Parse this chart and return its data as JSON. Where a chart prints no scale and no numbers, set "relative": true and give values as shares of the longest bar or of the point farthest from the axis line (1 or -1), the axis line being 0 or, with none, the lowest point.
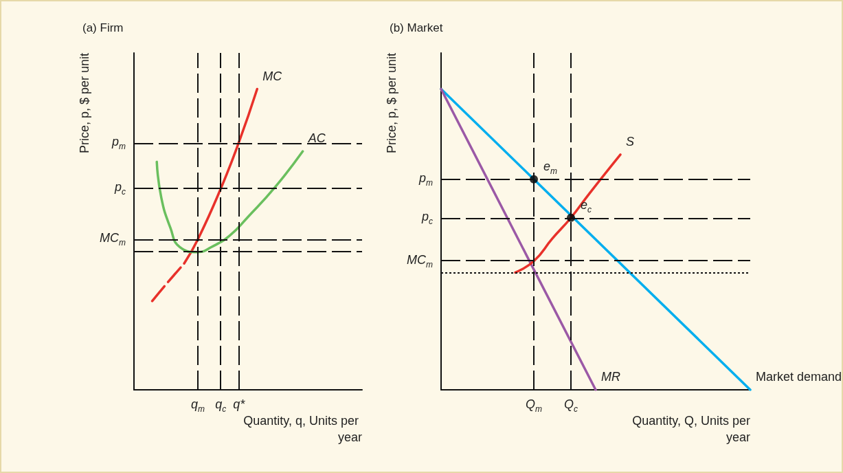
{
  "chart_data": [
    {
      "type": "line",
      "title": "(a) Firm",
      "xlabel": "Quantity, q, Units per year",
      "ylabel": "Price, p, $ per unit",
      "relative": true,
      "marker": "none",
      "categories": [
        null,
        null,
        null,
        null,
        null,
        null,
        null,
        null,
        null,
        null,
        null,
        null,
        null,
        null,
        "q$_{m}$",
        null,
        null,
        null,
        null,
        "q$_{c}$",
        null,
        null,
        null,
        "q*",
        null,
        null,
        null,
        null,
        null,
        null,
        null,
        null,
        null,
        null,
        null,
        null,
        null,
        null,
        null,
        null,
        null,
        null,
        null,
        null,
        null,
        null,
        null,
        null,
        null,
        null,
        null
      ],
      "series": [
        {
          "name": "MC",
          "color": "#e8312a",
          "values": [
            null,
            null,
            null,
            null,
            null,
            null,
            null,
            null,
            null,
            null,
            null,
            0.42,
            null,
            null,
            0.5,
            null,
            null,
            null,
            null,
            0.668,
            null,
            null,
            null,
            0.823,
            null,
            null,
            null,
            1.0,
            null,
            null,
            null,
            null,
            null,
            null,
            null,
            null,
            null,
            null,
            null,
            null,
            null,
            null,
            null,
            null,
            null,
            null,
            null,
            null,
            null,
            null,
            null
          ]
        },
        {
          "color": "#e8312a",
          "line_style": "dashed",
          "values": [
            null,
            null,
            null,
            null,
            0.295,
            null,
            null,
            0.35,
            null,
            null,
            null,
            0.42,
            null,
            null,
            null,
            null,
            null,
            null,
            null,
            null,
            null,
            null,
            null,
            null,
            null,
            null,
            null,
            null,
            null,
            null,
            null,
            null,
            null,
            null,
            null,
            null,
            null,
            null,
            null,
            null,
            null,
            null,
            null,
            null,
            null,
            null,
            null,
            null,
            null,
            null,
            null
          ]
        },
        {
          "name": "AC",
          "color": "#6abf5e",
          "values": [
            null,
            null,
            null,
            null,
            null,
            0.758,
            0.638,
            null,
            0.538,
            null,
            0.475,
            null,
            null,
            null,
            0.458,
            null,
            null,
            0.475,
            null,
            null,
            null,
            0.513,
            null,
            null,
            null,
            0.575,
            null,
            null,
            null,
            null,
            null,
            0.675,
            null,
            null,
            null,
            null,
            null,
            0.793,
            null,
            null,
            null,
            null,
            null,
            null,
            null,
            null,
            null,
            null,
            null,
            null,
            null
          ]
        }
      ],
      "ref_lines": [
        {
          "axis": "y",
          "value": 0.82,
          "label": "p$_{m}$"
        },
        {
          "axis": "y",
          "value": 0.67,
          "label": "p$_{c}$"
        },
        {
          "axis": "y",
          "value": 0.5,
          "label": "MC$_{m}$"
        },
        {
          "axis": "y",
          "value": 0.46,
          "label": null
        },
        {
          "axis": "x",
          "value": "q$_{m}$",
          "label": null
        },
        {
          "axis": "x",
          "value": "q$_{c}$",
          "label": null
        },
        {
          "axis": "x",
          "value": "q*",
          "label": null
        }
      ]
    },
    {
      "type": "line",
      "title": "(b) Market",
      "xlabel": "Quantity, Q, Units per year",
      "ylabel": "Price, p, $ per unit",
      "relative": true,
      "marker": "none",
      "categories": [
        null,
        null,
        null,
        null,
        null,
        null,
        null,
        null,
        null,
        null,
        null,
        null,
        null,
        null,
        null,
        "Q$_{m}$",
        null,
        null,
        null,
        null,
        null,
        "Q$_{c}$",
        null,
        null,
        null,
        null,
        null,
        null,
        null,
        null,
        null,
        null,
        null,
        null,
        null,
        null,
        null,
        null,
        null,
        null,
        null,
        null,
        null,
        null,
        null,
        null,
        null,
        null,
        null,
        null,
        null
      ],
      "series": [
        {
          "name": "Market demand",
          "color": "#00aeef",
          "values": [
            1,
            null,
            null,
            null,
            null,
            null,
            null,
            null,
            null,
            null,
            null,
            null,
            null,
            null,
            null,
            null,
            null,
            null,
            null,
            null,
            null,
            null,
            null,
            null,
            null,
            null,
            null,
            null,
            null,
            null,
            null,
            null,
            null,
            null,
            null,
            null,
            null,
            null,
            null,
            null,
            null,
            null,
            null,
            null,
            null,
            null,
            null,
            null,
            null,
            null,
            0
          ]
        },
        {
          "name": "MR",
          "color": "#9b59a6",
          "values": [
            1,
            null,
            null,
            null,
            null,
            null,
            null,
            null,
            null,
            null,
            null,
            null,
            null,
            null,
            null,
            null,
            null,
            null,
            null,
            null,
            null,
            null,
            null,
            null,
            null,
            0,
            null,
            null,
            null,
            null,
            null,
            null,
            null,
            null,
            null,
            null,
            null,
            null,
            null,
            null,
            null,
            null,
            null,
            null,
            null,
            null,
            null,
            null,
            null,
            null,
            null
          ]
        },
        {
          "name": "S",
          "color": "#e8312a",
          "values": [
            null,
            null,
            null,
            null,
            null,
            null,
            null,
            null,
            null,
            null,
            null,
            null,
            0.39,
            null,
            null,
            0.428,
            null,
            null,
            0.503,
            null,
            null,
            0.572,
            null,
            null,
            0.653,
            null,
            null,
            null,
            null,
            0.782,
            null,
            null,
            null,
            null,
            null,
            null,
            null,
            null,
            null,
            null,
            null,
            null,
            null,
            null,
            null,
            null,
            null,
            null,
            null,
            null,
            null
          ]
        },
        {
          "name": "e$_{m}$",
          "type": "scatter",
          "marker": "circle",
          "color": "#000000",
          "x": [
            "Q$_{m}$"
          ],
          "values": [
            0.7
          ]
        },
        {
          "name": "e$_{c}$",
          "type": "scatter",
          "marker": "circle",
          "color": "#000000",
          "x": [
            "Q$_{c}$"
          ],
          "values": [
            0.572
          ]
        }
      ],
      "ref_lines": [
        {
          "axis": "y",
          "value": 0.7,
          "label": "p$_{m}$"
        },
        {
          "axis": "y",
          "value": 0.572,
          "label": "p$_{c}$"
        },
        {
          "axis": "y",
          "value": 0.428,
          "label": "MC$_{m}$"
        },
        {
          "axis": "y",
          "value": 0.39,
          "label": null,
          "line_style": "dotted"
        },
        {
          "axis": "x",
          "value": "Q$_{m}$",
          "label": null
        },
        {
          "axis": "x",
          "value": "Q$_{c}$",
          "label": null
        }
      ]
    }
  ]
}
